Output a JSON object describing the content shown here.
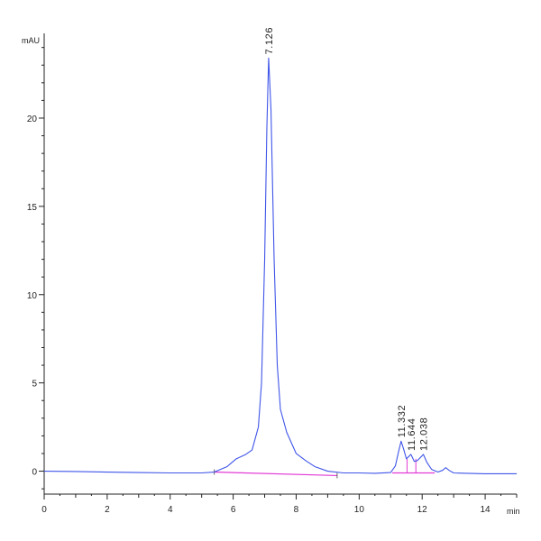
{
  "chart_data": {
    "type": "line",
    "title": "",
    "ylabel": "mAU",
    "xlabel": "min",
    "xlim": [
      0,
      15
    ],
    "ylim": [
      -1.3,
      24.8
    ],
    "x_ticks": [
      0,
      2,
      4,
      6,
      8,
      10,
      12,
      14
    ],
    "y_ticks": [
      0,
      5,
      10,
      15,
      20
    ],
    "grid": false,
    "legend": "none",
    "colors": {
      "trace": "#3f55e8",
      "baseline": "#e23ad6",
      "axis": "#222222"
    },
    "series": [
      {
        "points": [
          [
            0.0,
            0.0
          ],
          [
            1.0,
            -0.02
          ],
          [
            2.0,
            -0.05
          ],
          [
            3.0,
            -0.08
          ],
          [
            4.0,
            -0.1
          ],
          [
            5.0,
            -0.1
          ],
          [
            5.4,
            -0.05
          ],
          [
            5.8,
            0.25
          ],
          [
            6.1,
            0.7
          ],
          [
            6.4,
            0.95
          ],
          [
            6.6,
            1.2
          ],
          [
            6.8,
            2.5
          ],
          [
            6.9,
            5.0
          ],
          [
            7.0,
            12.0
          ],
          [
            7.07,
            19.5
          ],
          [
            7.126,
            23.4
          ],
          [
            7.2,
            20.5
          ],
          [
            7.3,
            12.0
          ],
          [
            7.4,
            6.0
          ],
          [
            7.5,
            3.5
          ],
          [
            7.7,
            2.2
          ],
          [
            8.0,
            1.0
          ],
          [
            8.3,
            0.6
          ],
          [
            8.6,
            0.25
          ],
          [
            9.0,
            0.0
          ],
          [
            9.5,
            -0.1
          ],
          [
            10.0,
            -0.1
          ],
          [
            10.5,
            -0.12
          ],
          [
            11.0,
            -0.08
          ],
          [
            11.15,
            0.3
          ],
          [
            11.25,
            1.1
          ],
          [
            11.332,
            1.7
          ],
          [
            11.42,
            1.2
          ],
          [
            11.5,
            0.7
          ],
          [
            11.644,
            0.95
          ],
          [
            11.75,
            0.55
          ],
          [
            11.85,
            0.6
          ],
          [
            12.038,
            0.95
          ],
          [
            12.15,
            0.5
          ],
          [
            12.3,
            0.1
          ],
          [
            12.5,
            -0.05
          ],
          [
            12.65,
            0.05
          ],
          [
            12.75,
            0.2
          ],
          [
            12.85,
            0.05
          ],
          [
            13.0,
            -0.1
          ],
          [
            14.0,
            -0.15
          ],
          [
            15.0,
            -0.15
          ]
        ]
      }
    ],
    "baselines": [
      [
        [
          5.4,
          -0.05
        ],
        [
          9.3,
          -0.25
        ]
      ],
      [
        [
          11.05,
          -0.1
        ],
        [
          12.4,
          -0.1
        ]
      ]
    ],
    "peaks": [
      {
        "x": 7.126,
        "y": 23.4,
        "label": "7.126"
      },
      {
        "x": 11.332,
        "y": 1.7,
        "label": "11.332"
      },
      {
        "x": 11.644,
        "y": 0.95,
        "label": "11.644"
      },
      {
        "x": 12.038,
        "y": 0.95,
        "label": "12.038"
      }
    ]
  }
}
